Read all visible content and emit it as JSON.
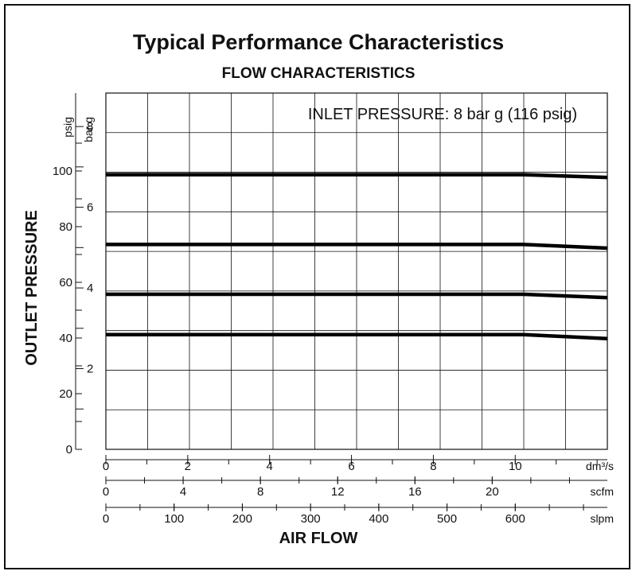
{
  "chart_data": {
    "type": "line",
    "title": "Typical Performance Characteristics",
    "subtitle": "FLOW CHARACTERISTICS",
    "annotation": "INLET PRESSURE: 8 bar g (116 psig)",
    "ylabel": "OUTLET PRESSURE",
    "xlabel": "AIR FLOW",
    "y_axes": [
      {
        "unit": "psig",
        "ticks": [
          "0",
          "20",
          "40",
          "60",
          "80",
          "100"
        ],
        "ylim": [
          0,
          128
        ]
      },
      {
        "unit": "bar g",
        "ticks": [
          "2",
          "4",
          "6",
          "8"
        ],
        "ylim": [
          0,
          8.83
        ]
      }
    ],
    "x_axes": [
      {
        "unit": "dm³/s",
        "ticks": [
          "0",
          "2",
          "4",
          "6",
          "8",
          "10"
        ],
        "xlim": [
          0,
          12.25
        ]
      },
      {
        "unit": "scfm",
        "ticks": [
          "0",
          "4",
          "8",
          "12",
          "16",
          "20"
        ],
        "xlim": [
          0,
          25.96
        ]
      },
      {
        "unit": "slpm",
        "ticks": [
          "0",
          "100",
          "200",
          "300",
          "400",
          "500",
          "600"
        ],
        "xlim": [
          0,
          735
        ]
      }
    ],
    "grid": true,
    "series": [
      {
        "x": [
          0,
          10.2,
          12.25
        ],
        "y": [
          98.7,
          98.7,
          97.7
        ]
      },
      {
        "x": [
          0,
          10.2,
          12.25
        ],
        "y": [
          73.6,
          73.6,
          72.3
        ]
      },
      {
        "x": [
          0,
          10.2,
          12.25
        ],
        "y": [
          55.7,
          55.7,
          54.5
        ]
      },
      {
        "x": [
          0,
          10.2,
          12.25
        ],
        "y": [
          41.2,
          41.2,
          39.8
        ]
      }
    ]
  }
}
